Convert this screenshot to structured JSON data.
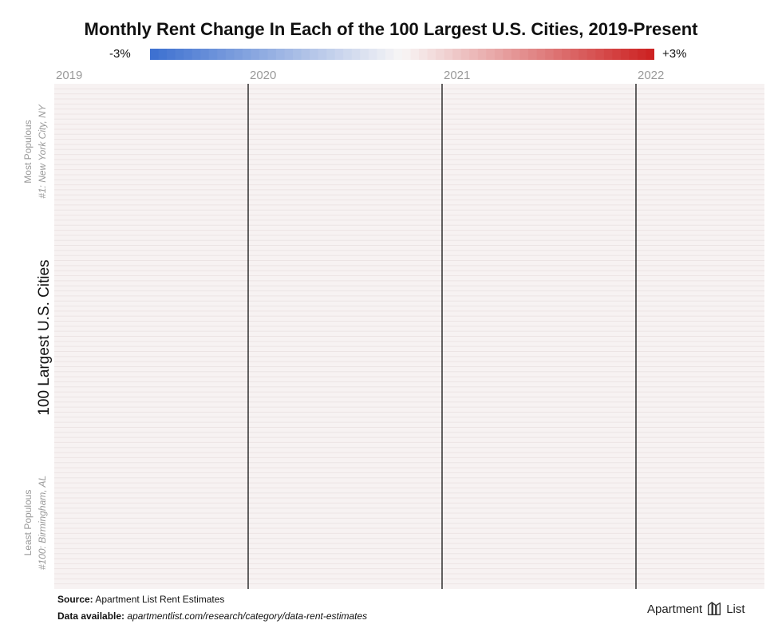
{
  "title": "Monthly Rent Change In Each of the 100 Largest U.S. Cities, 2019-Present",
  "legend": {
    "min_label": "-3%",
    "max_label": "+3%",
    "color_low": "#3b6fd0",
    "color_mid": "#f8f6f6",
    "color_high": "#cc1f1f"
  },
  "y_axis": {
    "title": "100 Largest U.S. Cities",
    "top_label": "Most Populous",
    "top_city": "#1: New York City, NY",
    "bottom_label": "Least Populous",
    "bottom_city": "#100: Birmingham, AL"
  },
  "footer": {
    "source_label": "Source:",
    "source_text": "Apartment List Rent Estimates",
    "data_label": "Data available:",
    "data_text": "apartmentlist.com/research/category/data-rent-estimates"
  },
  "brand": {
    "name_left": "Apartment",
    "name_right": "List"
  },
  "chart_data": {
    "type": "heatmap",
    "title": "Monthly Rent Change In Each of the 100 Largest U.S. Cities, 2019-Present",
    "x_tick_labels": [
      "2019",
      "2020",
      "2021",
      "2022"
    ],
    "y_label": "100 Largest U.S. Cities",
    "color_scale": {
      "min": -3,
      "max": 3,
      "min_label": "-3%",
      "max_label": "+3%",
      "low": "#3b6fd0",
      "mid": "#f8f6f6",
      "high": "#cc1f1f"
    },
    "values": []
  }
}
